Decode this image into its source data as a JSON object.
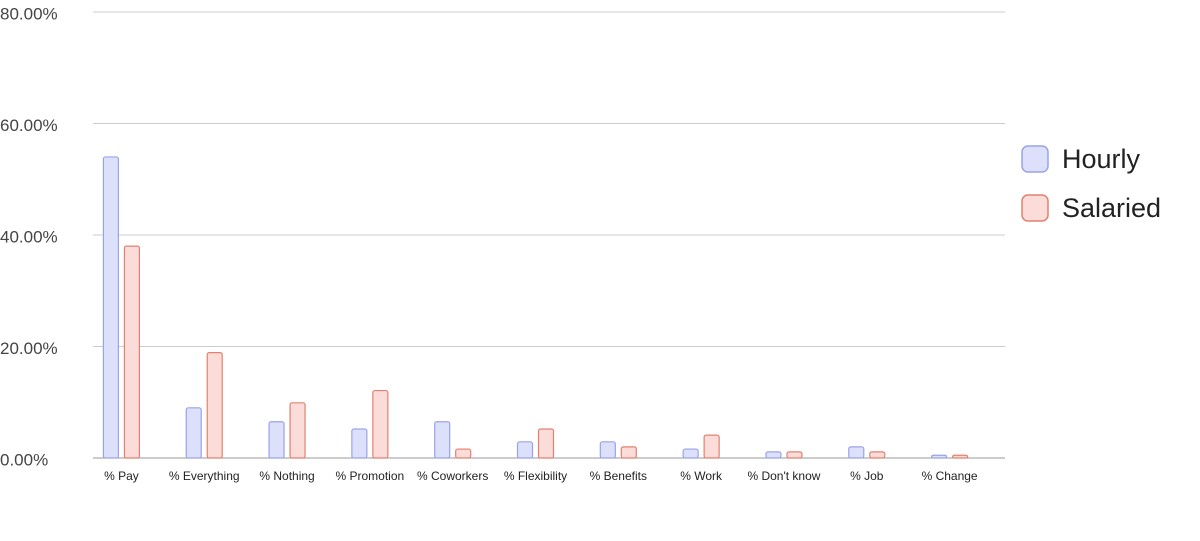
{
  "chart_data": {
    "type": "bar",
    "categories": [
      "% Pay",
      "% Everything",
      "% Nothing",
      "% Promotion",
      "% Coworkers",
      "% Flexibility",
      "% Benefits",
      "% Work",
      "% Don't know",
      "% Job",
      "% Change"
    ],
    "series": [
      {
        "name": "Hourly",
        "color": "#9aa3ea",
        "fill": "#dde0fb",
        "values": [
          54,
          9,
          6.5,
          5.2,
          6.5,
          2.9,
          2.9,
          1.6,
          1.1,
          2,
          0.5
        ]
      },
      {
        "name": "Salaried",
        "color": "#e3806f",
        "fill": "#fbdcd8",
        "values": [
          38,
          18.9,
          9.9,
          12.1,
          1.6,
          5.2,
          2,
          4.1,
          1.1,
          1.1,
          0.5
        ]
      }
    ],
    "ylim": [
      0,
      80
    ],
    "yticks": [
      {
        "value": 0,
        "label": "0.00%"
      },
      {
        "value": 20,
        "label": "20.00%"
      },
      {
        "value": 40,
        "label": "40.00%"
      },
      {
        "value": 60,
        "label": "60.00%"
      },
      {
        "value": 80,
        "label": "80.00%"
      }
    ],
    "grid": true,
    "legend": "right"
  }
}
